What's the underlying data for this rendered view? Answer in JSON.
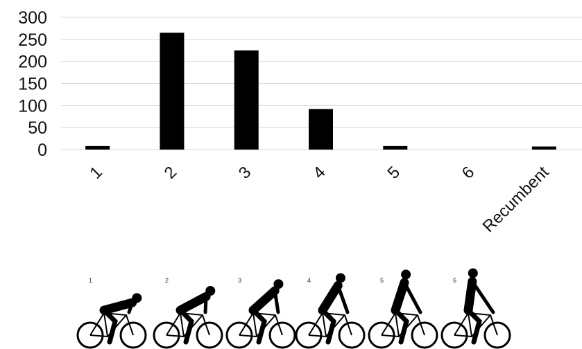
{
  "chart_data": {
    "type": "bar",
    "categories": [
      "1",
      "2",
      "3",
      "4",
      "5",
      "6",
      "Recumbent"
    ],
    "values": [
      8,
      265,
      225,
      92,
      8,
      0,
      7
    ],
    "ylim": [
      0,
      300
    ],
    "yticks": [
      0,
      50,
      100,
      150,
      200,
      250,
      300
    ],
    "grid": true,
    "bar_color": "#000000",
    "grid_color": "#d9d9d9"
  },
  "illustration": {
    "posture_labels": [
      "1",
      "2",
      "3",
      "4",
      "5",
      "6"
    ]
  }
}
